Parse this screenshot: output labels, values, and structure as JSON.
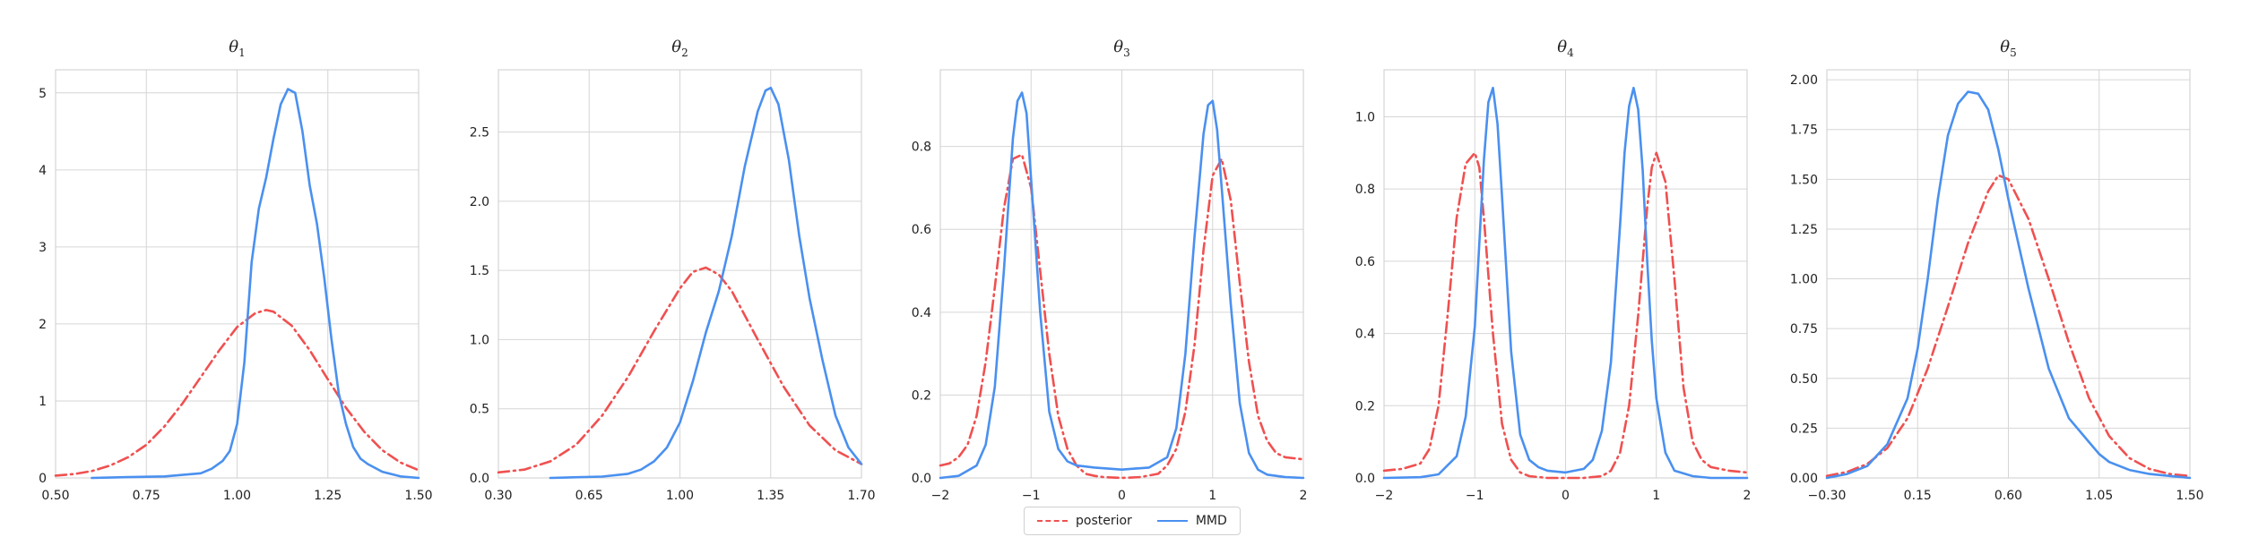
{
  "colors": {
    "posterior": "#f05050",
    "mmd": "#4a90f0",
    "grid": "#d6d6d6",
    "frame": "#cccccc",
    "text": "#222222"
  },
  "legend": {
    "placement": "bottom-center",
    "entries": [
      {
        "label": "posterior",
        "style": "dashdot",
        "color": "#f05050"
      },
      {
        "label": "MMD",
        "style": "solid",
        "color": "#4a90f0"
      }
    ]
  },
  "chart_data": [
    {
      "type": "line",
      "title": "θ",
      "title_sub": "1",
      "grid": true,
      "xlim": [
        0.5,
        1.5
      ],
      "ylim": [
        0,
        5.3
      ],
      "xticks": [
        0.5,
        0.75,
        1.0,
        1.25,
        1.5
      ],
      "xtick_labels": [
        "0.50",
        "0.75",
        "1.00",
        "1.25",
        "1.50"
      ],
      "yticks": [
        0,
        1,
        2,
        3,
        4,
        5
      ],
      "ytick_labels": [
        "0",
        "1",
        "2",
        "3",
        "4",
        "5"
      ],
      "series": [
        {
          "name": "posterior",
          "style": "dashdot",
          "x": [
            0.5,
            0.55,
            0.6,
            0.65,
            0.7,
            0.75,
            0.8,
            0.85,
            0.9,
            0.95,
            1.0,
            1.05,
            1.08,
            1.1,
            1.15,
            1.2,
            1.25,
            1.3,
            1.35,
            1.4,
            1.45,
            1.5
          ],
          "y": [
            0.03,
            0.05,
            0.09,
            0.16,
            0.27,
            0.43,
            0.67,
            0.97,
            1.31,
            1.65,
            1.96,
            2.14,
            2.18,
            2.16,
            1.98,
            1.66,
            1.28,
            0.91,
            0.6,
            0.36,
            0.2,
            0.1
          ]
        },
        {
          "name": "MMD",
          "style": "solid",
          "x": [
            0.6,
            0.7,
            0.8,
            0.85,
            0.9,
            0.93,
            0.96,
            0.98,
            1.0,
            1.02,
            1.04,
            1.06,
            1.08,
            1.1,
            1.12,
            1.14,
            1.16,
            1.18,
            1.2,
            1.22,
            1.24,
            1.26,
            1.28,
            1.3,
            1.32,
            1.34,
            1.36,
            1.4,
            1.45,
            1.5
          ],
          "y": [
            0.0,
            0.01,
            0.02,
            0.04,
            0.06,
            0.12,
            0.22,
            0.35,
            0.7,
            1.5,
            2.8,
            3.5,
            3.9,
            4.4,
            4.85,
            5.05,
            5.0,
            4.5,
            3.8,
            3.3,
            2.6,
            1.8,
            1.1,
            0.7,
            0.4,
            0.25,
            0.18,
            0.08,
            0.02,
            0.0
          ]
        }
      ]
    },
    {
      "type": "line",
      "title": "θ",
      "title_sub": "2",
      "grid": true,
      "xlim": [
        0.3,
        1.7
      ],
      "ylim": [
        0,
        2.95
      ],
      "xticks": [
        0.3,
        0.65,
        1.0,
        1.35,
        1.7
      ],
      "xtick_labels": [
        "0.30",
        "0.65",
        "1.00",
        "1.35",
        "1.70"
      ],
      "yticks": [
        0,
        0.5,
        1.0,
        1.5,
        2.0,
        2.5
      ],
      "ytick_labels": [
        "0.0",
        "0.5",
        "1.0",
        "1.5",
        "2.0",
        "2.5"
      ],
      "series": [
        {
          "name": "posterior",
          "style": "dashdot",
          "x": [
            0.3,
            0.4,
            0.5,
            0.6,
            0.7,
            0.8,
            0.9,
            1.0,
            1.05,
            1.1,
            1.15,
            1.2,
            1.3,
            1.4,
            1.5,
            1.6,
            1.7
          ],
          "y": [
            0.04,
            0.06,
            0.12,
            0.24,
            0.45,
            0.73,
            1.06,
            1.37,
            1.49,
            1.52,
            1.47,
            1.35,
            1.0,
            0.66,
            0.38,
            0.2,
            0.1
          ]
        },
        {
          "name": "MMD",
          "style": "solid",
          "x": [
            0.5,
            0.7,
            0.8,
            0.85,
            0.9,
            0.95,
            1.0,
            1.05,
            1.1,
            1.15,
            1.2,
            1.25,
            1.3,
            1.33,
            1.35,
            1.38,
            1.42,
            1.46,
            1.5,
            1.55,
            1.6,
            1.65,
            1.7
          ],
          "y": [
            0.0,
            0.01,
            0.03,
            0.06,
            0.12,
            0.22,
            0.4,
            0.7,
            1.05,
            1.35,
            1.75,
            2.25,
            2.65,
            2.8,
            2.82,
            2.7,
            2.3,
            1.75,
            1.3,
            0.85,
            0.45,
            0.22,
            0.1
          ]
        }
      ]
    },
    {
      "type": "line",
      "title": "θ",
      "title_sub": "3",
      "grid": true,
      "xlim": [
        -2,
        2
      ],
      "ylim": [
        0,
        0.985
      ],
      "xticks": [
        -2,
        -1,
        0,
        1,
        2
      ],
      "xtick_labels": [
        "−2",
        "−1",
        "0",
        "1",
        "2"
      ],
      "yticks": [
        0,
        0.2,
        0.4,
        0.6,
        0.8
      ],
      "ytick_labels": [
        "0.0",
        "0.2",
        "0.4",
        "0.6",
        "0.8"
      ],
      "series": [
        {
          "name": "posterior",
          "style": "dashdot",
          "x": [
            -2.0,
            -1.9,
            -1.8,
            -1.7,
            -1.6,
            -1.5,
            -1.4,
            -1.3,
            -1.2,
            -1.1,
            -1.0,
            -0.9,
            -0.8,
            -0.7,
            -0.6,
            -0.5,
            -0.4,
            -0.3,
            -0.2,
            0.0,
            0.2,
            0.4,
            0.5,
            0.6,
            0.7,
            0.8,
            0.9,
            1.0,
            1.1,
            1.2,
            1.3,
            1.4,
            1.5,
            1.6,
            1.7,
            1.8,
            2.0
          ],
          "y": [
            0.03,
            0.035,
            0.05,
            0.08,
            0.15,
            0.28,
            0.46,
            0.65,
            0.77,
            0.78,
            0.7,
            0.5,
            0.3,
            0.15,
            0.07,
            0.03,
            0.01,
            0.005,
            0.002,
            0.0,
            0.002,
            0.01,
            0.03,
            0.07,
            0.16,
            0.32,
            0.55,
            0.73,
            0.77,
            0.67,
            0.47,
            0.28,
            0.15,
            0.09,
            0.06,
            0.05,
            0.045
          ]
        },
        {
          "name": "MMD",
          "style": "solid",
          "x": [
            -2.0,
            -1.8,
            -1.6,
            -1.5,
            -1.4,
            -1.3,
            -1.2,
            -1.15,
            -1.1,
            -1.05,
            -1.0,
            -0.9,
            -0.8,
            -0.7,
            -0.6,
            -0.5,
            -0.3,
            0.0,
            0.3,
            0.5,
            0.6,
            0.7,
            0.8,
            0.9,
            0.95,
            1.0,
            1.05,
            1.1,
            1.2,
            1.3,
            1.4,
            1.5,
            1.6,
            1.8,
            2.0
          ],
          "y": [
            0.0,
            0.005,
            0.03,
            0.08,
            0.22,
            0.5,
            0.82,
            0.91,
            0.93,
            0.88,
            0.72,
            0.4,
            0.16,
            0.07,
            0.04,
            0.03,
            0.025,
            0.02,
            0.025,
            0.05,
            0.12,
            0.3,
            0.58,
            0.83,
            0.9,
            0.91,
            0.84,
            0.7,
            0.42,
            0.18,
            0.06,
            0.02,
            0.008,
            0.002,
            0.0
          ]
        }
      ]
    },
    {
      "type": "line",
      "title": "θ",
      "title_sub": "4",
      "grid": true,
      "xlim": [
        -2,
        2
      ],
      "ylim": [
        0,
        1.13
      ],
      "xticks": [
        -2,
        -1,
        0,
        1,
        2
      ],
      "xtick_labels": [
        "−2",
        "−1",
        "0",
        "1",
        "2"
      ],
      "yticks": [
        0,
        0.2,
        0.4,
        0.6,
        0.8,
        1.0
      ],
      "ytick_labels": [
        "0.0",
        "0.2",
        "0.4",
        "0.6",
        "0.8",
        "1.0"
      ],
      "series": [
        {
          "name": "posterior",
          "style": "dashdot",
          "x": [
            -2.0,
            -1.8,
            -1.6,
            -1.5,
            -1.4,
            -1.3,
            -1.2,
            -1.1,
            -1.0,
            -0.95,
            -0.9,
            -0.8,
            -0.7,
            -0.6,
            -0.5,
            -0.4,
            -0.2,
            0.0,
            0.2,
            0.4,
            0.5,
            0.6,
            0.7,
            0.8,
            0.9,
            0.95,
            1.0,
            1.1,
            1.2,
            1.3,
            1.4,
            1.5,
            1.6,
            1.8,
            2.0
          ],
          "y": [
            0.02,
            0.025,
            0.04,
            0.08,
            0.2,
            0.45,
            0.72,
            0.87,
            0.9,
            0.86,
            0.72,
            0.4,
            0.15,
            0.05,
            0.015,
            0.005,
            0.0,
            0.0,
            0.0,
            0.005,
            0.02,
            0.07,
            0.2,
            0.45,
            0.75,
            0.86,
            0.9,
            0.82,
            0.55,
            0.25,
            0.1,
            0.05,
            0.03,
            0.02,
            0.015
          ]
        },
        {
          "name": "MMD",
          "style": "solid",
          "x": [
            -2.0,
            -1.6,
            -1.4,
            -1.2,
            -1.1,
            -1.0,
            -0.95,
            -0.9,
            -0.85,
            -0.8,
            -0.75,
            -0.7,
            -0.6,
            -0.5,
            -0.4,
            -0.3,
            -0.2,
            0.0,
            0.2,
            0.3,
            0.4,
            0.5,
            0.6,
            0.65,
            0.7,
            0.75,
            0.8,
            0.85,
            0.9,
            0.95,
            1.0,
            1.1,
            1.2,
            1.4,
            1.6,
            2.0
          ],
          "y": [
            0.0,
            0.002,
            0.01,
            0.06,
            0.17,
            0.42,
            0.65,
            0.88,
            1.04,
            1.08,
            0.98,
            0.78,
            0.35,
            0.12,
            0.05,
            0.03,
            0.02,
            0.015,
            0.025,
            0.05,
            0.13,
            0.32,
            0.7,
            0.9,
            1.03,
            1.08,
            1.02,
            0.85,
            0.6,
            0.38,
            0.22,
            0.07,
            0.02,
            0.005,
            0.0,
            0.0
          ]
        }
      ]
    },
    {
      "type": "line",
      "title": "θ",
      "title_sub": "5",
      "grid": true,
      "xlim": [
        -0.3,
        1.5
      ],
      "ylim": [
        0,
        2.05
      ],
      "xticks": [
        -0.3,
        0.15,
        0.6,
        1.05,
        1.5
      ],
      "xtick_labels": [
        "−0.30",
        "0.15",
        "0.60",
        "1.05",
        "1.50"
      ],
      "yticks": [
        0,
        0.25,
        0.5,
        0.75,
        1.0,
        1.25,
        1.5,
        1.75,
        2.0
      ],
      "ytick_labels": [
        "0.00",
        "0.25",
        "0.50",
        "0.75",
        "1.00",
        "1.25",
        "1.50",
        "1.75",
        "2.00"
      ],
      "series": [
        {
          "name": "posterior",
          "style": "dashdot",
          "x": [
            -0.3,
            -0.2,
            -0.1,
            0.0,
            0.1,
            0.2,
            0.3,
            0.4,
            0.5,
            0.55,
            0.6,
            0.7,
            0.8,
            0.9,
            1.0,
            1.1,
            1.2,
            1.3,
            1.4,
            1.5
          ],
          "y": [
            0.01,
            0.03,
            0.07,
            0.15,
            0.3,
            0.55,
            0.86,
            1.18,
            1.44,
            1.52,
            1.5,
            1.3,
            1.0,
            0.68,
            0.4,
            0.21,
            0.1,
            0.045,
            0.02,
            0.01
          ]
        },
        {
          "name": "MMD",
          "style": "solid",
          "x": [
            -0.3,
            -0.2,
            -0.1,
            0.0,
            0.1,
            0.15,
            0.2,
            0.25,
            0.3,
            0.35,
            0.4,
            0.45,
            0.5,
            0.55,
            0.6,
            0.7,
            0.8,
            0.9,
            1.0,
            1.05,
            1.1,
            1.2,
            1.3,
            1.4,
            1.5
          ],
          "y": [
            0.0,
            0.02,
            0.06,
            0.17,
            0.4,
            0.65,
            1.0,
            1.4,
            1.72,
            1.88,
            1.94,
            1.93,
            1.85,
            1.65,
            1.4,
            0.95,
            0.55,
            0.3,
            0.18,
            0.12,
            0.08,
            0.04,
            0.02,
            0.01,
            0.0
          ]
        }
      ]
    }
  ]
}
